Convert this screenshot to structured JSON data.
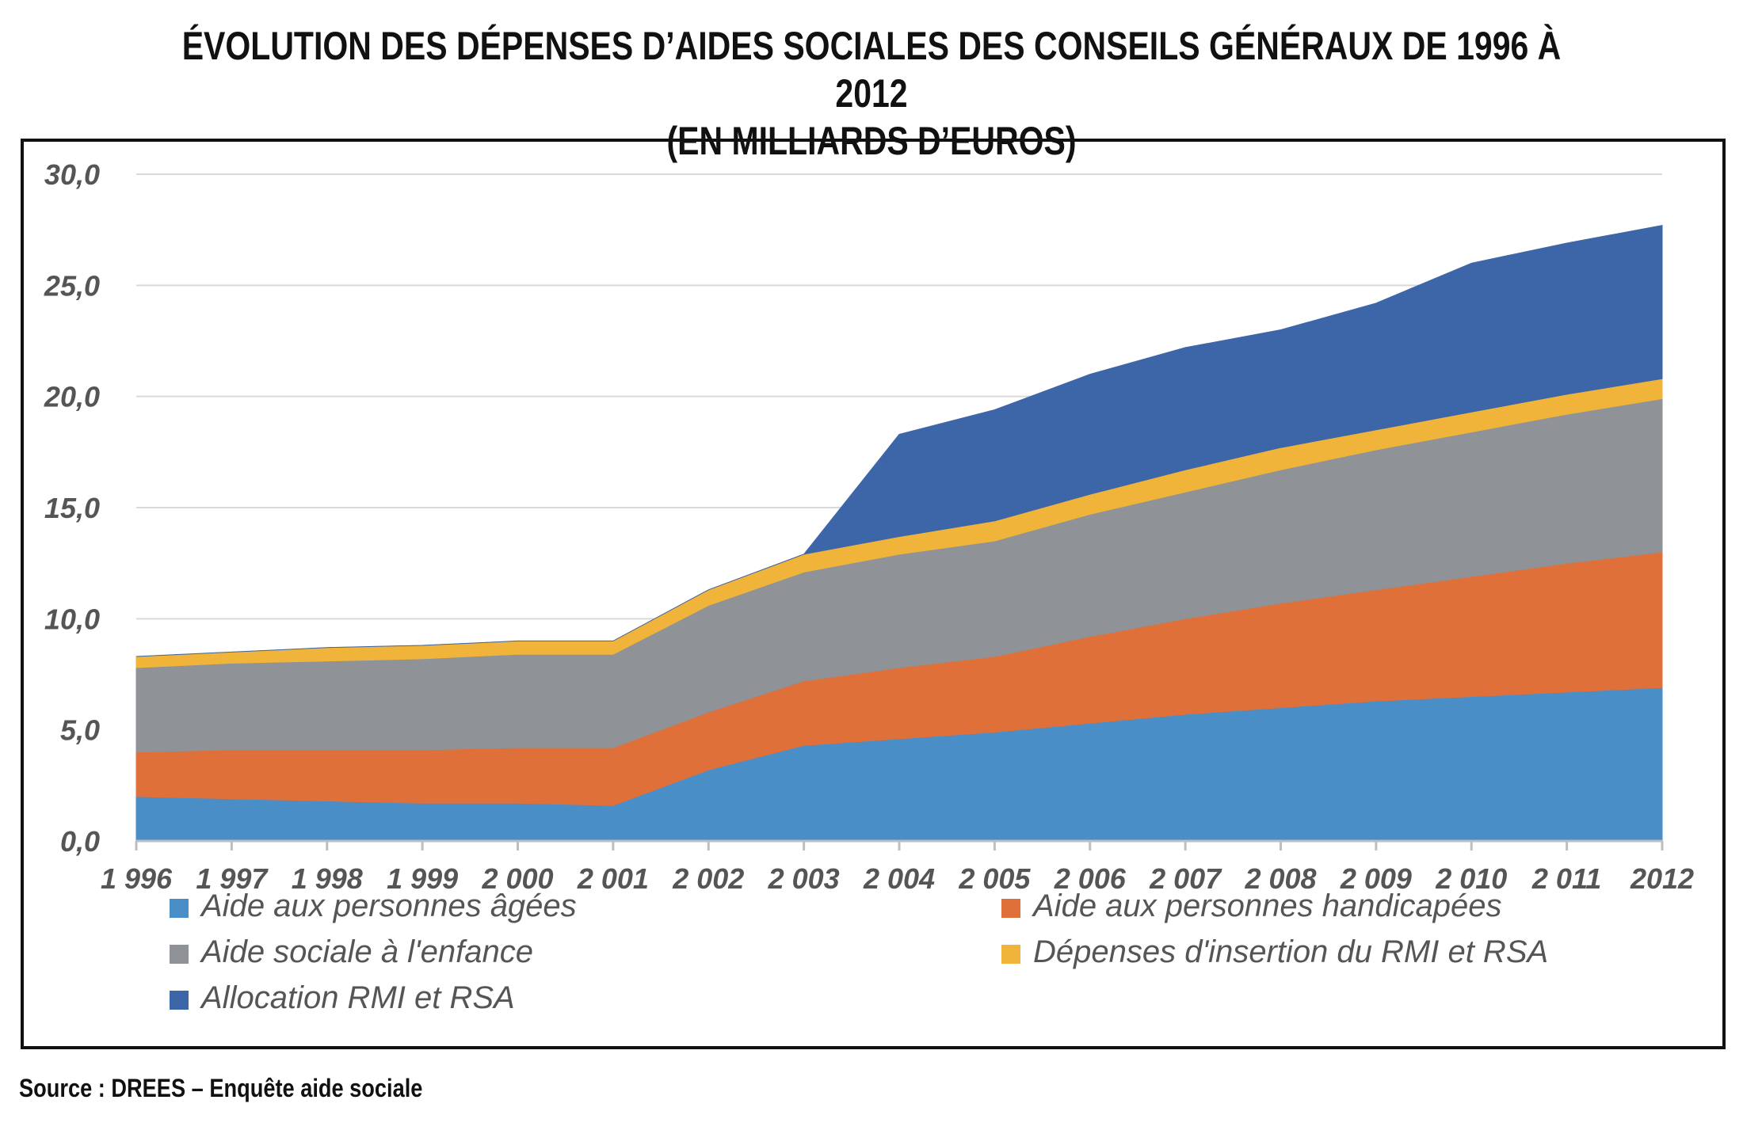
{
  "title_line1": "ÉVOLUTION DES DÉPENSES D’AIDES SOCIALES DES CONSEILS GÉNÉRAUX DE 1996 À 2012",
  "title_line2": "(EN MILLIARDS D’EUROS)",
  "source": "Source : DREES – Enquête aide sociale",
  "chart_data": {
    "type": "area",
    "stacked": true,
    "x": [
      "1 996",
      "1 997",
      "1 998",
      "1 999",
      "2 000",
      "2 001",
      "2 002",
      "2 003",
      "2 004",
      "2 005",
      "2 006",
      "2 007",
      "2 008",
      "2 009",
      "2 010",
      "2 011",
      "2012"
    ],
    "y_ticks": [
      "0,0",
      "5,0",
      "10,0",
      "15,0",
      "20,0",
      "25,0",
      "30,0"
    ],
    "ylim": [
      0,
      30
    ],
    "grid": true,
    "legend_position": "bottom",
    "series": [
      {
        "name": "Aide aux personnes âgées",
        "color": "#4a8ec8",
        "values": [
          2.0,
          1.9,
          1.8,
          1.7,
          1.7,
          1.6,
          3.2,
          4.3,
          4.6,
          4.9,
          5.3,
          5.7,
          6.0,
          6.3,
          6.5,
          6.7,
          6.9
        ]
      },
      {
        "name": "Aide aux personnes handicapées",
        "color": "#e0703a",
        "values": [
          2.0,
          2.2,
          2.3,
          2.4,
          2.5,
          2.6,
          2.6,
          2.9,
          3.2,
          3.4,
          3.9,
          4.3,
          4.7,
          5.0,
          5.4,
          5.8,
          6.1
        ]
      },
      {
        "name": "Aide sociale à l'enfance",
        "color": "#8f9296",
        "values": [
          3.8,
          3.9,
          4.0,
          4.1,
          4.2,
          4.2,
          4.8,
          4.9,
          5.1,
          5.2,
          5.5,
          5.7,
          6.0,
          6.3,
          6.5,
          6.7,
          6.9
        ]
      },
      {
        "name": "Dépenses d'insertion du RMI et RSA",
        "color": "#f0b43a",
        "values": [
          0.5,
          0.5,
          0.6,
          0.6,
          0.6,
          0.6,
          0.7,
          0.8,
          0.8,
          0.9,
          0.9,
          1.0,
          1.0,
          0.9,
          0.9,
          0.9,
          0.9
        ]
      },
      {
        "name": "Allocation RMI et RSA",
        "color": "#3c66a8",
        "values": [
          0,
          0,
          0,
          0,
          0,
          0,
          0,
          0,
          4.6,
          5.0,
          5.4,
          5.5,
          5.3,
          5.7,
          6.7,
          6.8,
          6.9
        ]
      }
    ]
  }
}
